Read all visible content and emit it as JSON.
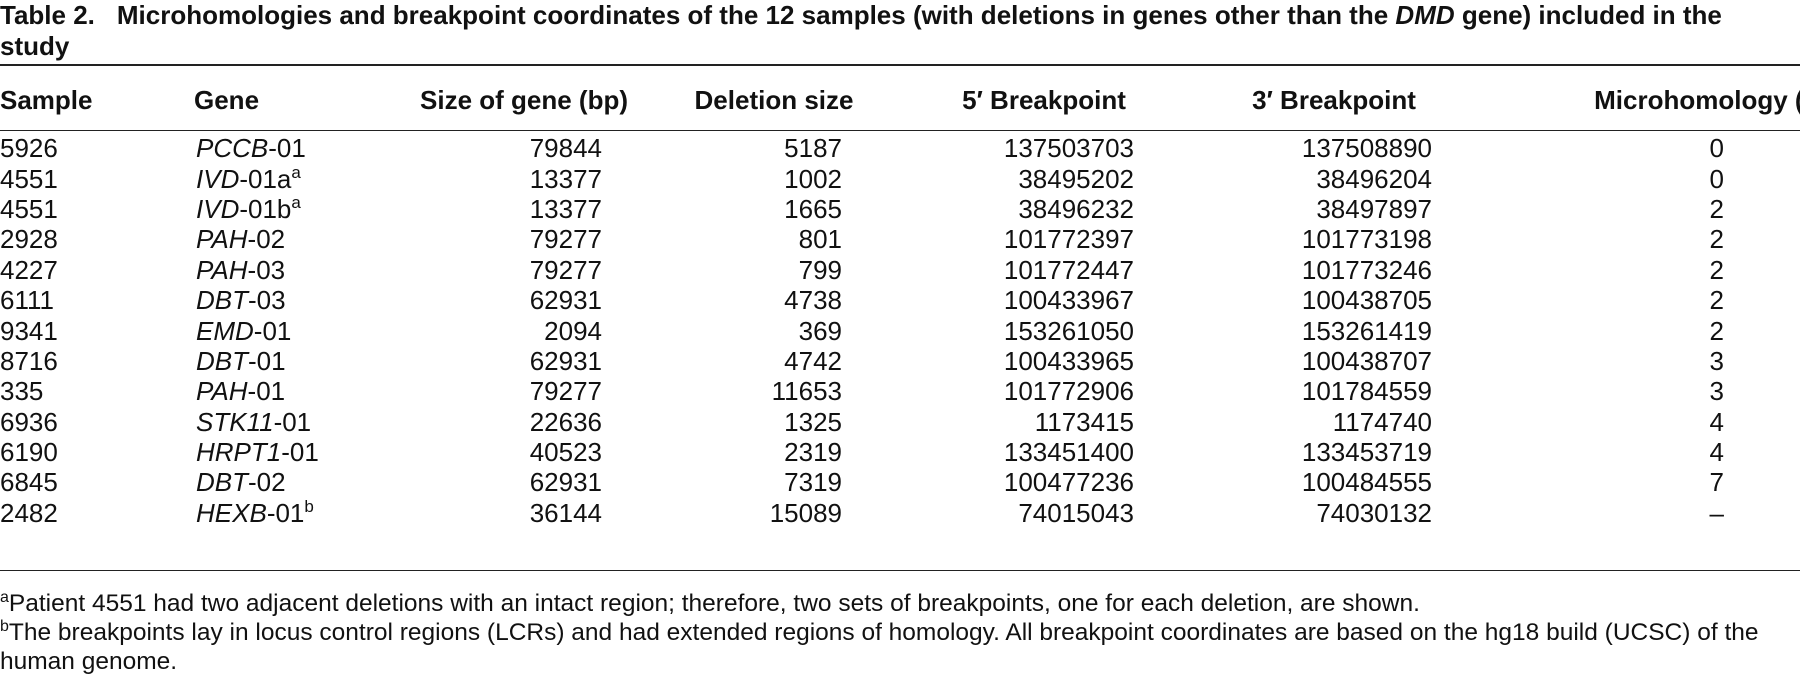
{
  "caption": {
    "label": "Table 2.",
    "text_before": "Microhomologies and breakpoint coordinates of the 12 samples (with deletions in genes other than the ",
    "text_italic": "DMD",
    "text_after": " gene) included in the study"
  },
  "columns": [
    "Sample",
    "Gene",
    "Size of gene (bp)",
    "Deletion size",
    "5′ Breakpoint",
    "3′ Breakpoint",
    "Microhomology (bp)"
  ],
  "rows": [
    {
      "sample": "5926",
      "gene": "PCCB",
      "suffix": "-01",
      "note": "",
      "size": "79844",
      "deletion": "5187",
      "bp5": "137503703",
      "bp3": "137508890",
      "micro": "0"
    },
    {
      "sample": "4551",
      "gene": "IVD",
      "suffix": "-01a",
      "note": "a",
      "size": "13377",
      "deletion": "1002",
      "bp5": "38495202",
      "bp3": "38496204",
      "micro": "0"
    },
    {
      "sample": "4551",
      "gene": "IVD",
      "suffix": "-01b",
      "note": "a",
      "size": "13377",
      "deletion": "1665",
      "bp5": "38496232",
      "bp3": "38497897",
      "micro": "2"
    },
    {
      "sample": "2928",
      "gene": "PAH",
      "suffix": "-02",
      "note": "",
      "size": "79277",
      "deletion": "801",
      "bp5": "101772397",
      "bp3": "101773198",
      "micro": "2"
    },
    {
      "sample": "4227",
      "gene": "PAH",
      "suffix": "-03",
      "note": "",
      "size": "79277",
      "deletion": "799",
      "bp5": "101772447",
      "bp3": "101773246",
      "micro": "2"
    },
    {
      "sample": "6111",
      "gene": "DBT",
      "suffix": "-03",
      "note": "",
      "size": "62931",
      "deletion": "4738",
      "bp5": "100433967",
      "bp3": "100438705",
      "micro": "2"
    },
    {
      "sample": "9341",
      "gene": "EMD",
      "suffix": "-01",
      "note": "",
      "size": "2094",
      "deletion": "369",
      "bp5": "153261050",
      "bp3": "153261419",
      "micro": "2"
    },
    {
      "sample": "8716",
      "gene": "DBT",
      "suffix": "-01",
      "note": "",
      "size": "62931",
      "deletion": "4742",
      "bp5": "100433965",
      "bp3": "100438707",
      "micro": "3"
    },
    {
      "sample": "335",
      "gene": "PAH",
      "suffix": "-01",
      "note": "",
      "size": "79277",
      "deletion": "11653",
      "bp5": "101772906",
      "bp3": "101784559",
      "micro": "3"
    },
    {
      "sample": "6936",
      "gene": "STK11",
      "suffix": "-01",
      "note": "",
      "size": "22636",
      "deletion": "1325",
      "bp5": "1173415",
      "bp3": "1174740",
      "micro": "4"
    },
    {
      "sample": "6190",
      "gene": "HRPT1",
      "suffix": "-01",
      "note": "",
      "size": "40523",
      "deletion": "2319",
      "bp5": "133451400",
      "bp3": "133453719",
      "micro": "4"
    },
    {
      "sample": "6845",
      "gene": "DBT",
      "suffix": "-02",
      "note": "",
      "size": "62931",
      "deletion": "7319",
      "bp5": "100477236",
      "bp3": "100484555",
      "micro": "7"
    },
    {
      "sample": "2482",
      "gene": "HEXB",
      "suffix": "-01",
      "note": "b",
      "size": "36144",
      "deletion": "15089",
      "bp5": "74015043",
      "bp3": "74030132",
      "micro": "–"
    }
  ],
  "footnotes": [
    {
      "mark": "a",
      "text": "Patient 4551 had two adjacent deletions with an intact region; therefore, two sets of breakpoints, one for each deletion, are shown."
    },
    {
      "mark": "b",
      "text": "The breakpoints lay in locus control regions (LCRs) and had extended regions of homology. All breakpoint coordinates are based on the hg18 build (UCSC) of the human genome."
    }
  ]
}
